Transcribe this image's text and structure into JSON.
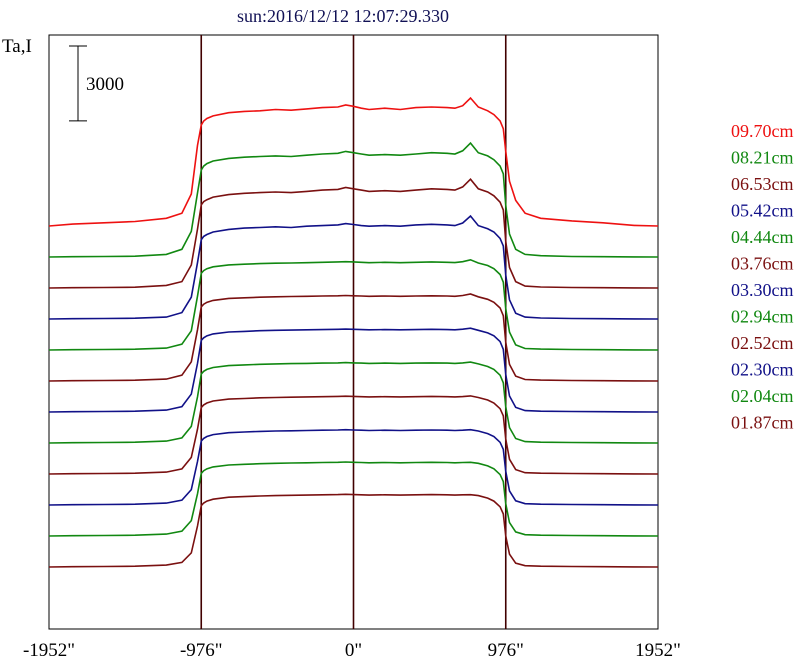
{
  "header": {
    "title": "sun:2016/12/12 12:07:29.330"
  },
  "colors": {
    "red": "#ee1111",
    "green": "#118811",
    "maroon": "#7a1010",
    "navy": "#111188",
    "axis": "#000000",
    "marker": "#400000"
  },
  "chart_data": {
    "type": "line",
    "title": "sun:2016/12/12 12:07:29.330",
    "ylabel": "Ta,I",
    "scale_bar_label": "3000",
    "scale_bar_value": 3000,
    "xlim": [
      -1952,
      1952
    ],
    "x_ticks": [
      {
        "value": -1952,
        "label": "-1952\""
      },
      {
        "value": -976,
        "label": "-976\""
      },
      {
        "value": 0,
        "label": "0\""
      },
      {
        "value": 976,
        "label": "976\""
      },
      {
        "value": 1952,
        "label": "1952\""
      }
    ],
    "limb_markers": [
      -976,
      0,
      976
    ],
    "x": [
      -1952,
      -1800,
      -1600,
      -1400,
      -1200,
      -1100,
      -1040,
      -1000,
      -976,
      -960,
      -940,
      -900,
      -800,
      -700,
      -600,
      -500,
      -400,
      -300,
      -200,
      -100,
      -50,
      0,
      50,
      100,
      200,
      300,
      400,
      500,
      600,
      650,
      700,
      750,
      800,
      860,
      900,
      940,
      960,
      976,
      1000,
      1040,
      1100,
      1200,
      1400,
      1600,
      1800,
      1952
    ],
    "series": [
      {
        "name": "09.70cm",
        "color": "red",
        "values": [
          0,
          150,
          250,
          350,
          600,
          1000,
          2500,
          6300,
          7900,
          8200,
          8400,
          8600,
          8850,
          8950,
          9000,
          9100,
          9050,
          9150,
          9250,
          9300,
          9450,
          9350,
          9200,
          9100,
          9200,
          9100,
          9250,
          9300,
          9250,
          9200,
          9400,
          10000,
          9300,
          9000,
          8700,
          8200,
          7600,
          5800,
          3500,
          2000,
          1000,
          600,
          400,
          250,
          50,
          0
        ]
      },
      {
        "name": "08.21cm",
        "color": "green",
        "values": [
          0,
          20,
          40,
          60,
          200,
          600,
          2000,
          5000,
          6800,
          7100,
          7300,
          7500,
          7700,
          7800,
          7850,
          7900,
          7850,
          7950,
          8050,
          8100,
          8250,
          8150,
          8050,
          7950,
          8000,
          7950,
          8050,
          8150,
          8100,
          8050,
          8300,
          8900,
          8150,
          7900,
          7600,
          7100,
          6500,
          4000,
          1800,
          600,
          200,
          100,
          40,
          20,
          10,
          0
        ]
      },
      {
        "name": "06.53cm",
        "color": "maroon",
        "values": [
          0,
          20,
          40,
          60,
          200,
          500,
          1800,
          4600,
          6500,
          6750,
          6900,
          7100,
          7300,
          7400,
          7450,
          7500,
          7450,
          7550,
          7650,
          7700,
          7850,
          7750,
          7650,
          7550,
          7600,
          7550,
          7650,
          7750,
          7700,
          7650,
          7900,
          8500,
          7750,
          7500,
          7200,
          6700,
          6100,
          3600,
          1600,
          500,
          150,
          80,
          40,
          20,
          10,
          0
        ]
      },
      {
        "name": "05.42cm",
        "color": "navy",
        "values": [
          0,
          20,
          40,
          60,
          150,
          500,
          1700,
          4400,
          6200,
          6450,
          6600,
          6800,
          7000,
          7100,
          7150,
          7200,
          7150,
          7250,
          7300,
          7350,
          7450,
          7380,
          7300,
          7250,
          7300,
          7250,
          7350,
          7400,
          7350,
          7300,
          7500,
          8050,
          7300,
          7050,
          6800,
          6300,
          5700,
          3400,
          1500,
          450,
          150,
          80,
          40,
          20,
          10,
          0
        ]
      },
      {
        "name": "04.44cm",
        "color": "green",
        "values": [
          0,
          20,
          40,
          60,
          150,
          450,
          1500,
          4200,
          6000,
          6200,
          6350,
          6500,
          6650,
          6700,
          6750,
          6780,
          6800,
          6820,
          6850,
          6880,
          6900,
          6880,
          6850,
          6820,
          6850,
          6820,
          6850,
          6880,
          6850,
          6830,
          6900,
          7050,
          6800,
          6600,
          6350,
          5900,
          5300,
          3200,
          1400,
          400,
          120,
          70,
          40,
          20,
          10,
          0
        ]
      },
      {
        "name": "03.76cm",
        "color": "maroon",
        "values": [
          0,
          20,
          40,
          60,
          150,
          450,
          1500,
          4000,
          5800,
          6000,
          6150,
          6300,
          6450,
          6500,
          6550,
          6580,
          6600,
          6620,
          6640,
          6660,
          6680,
          6660,
          6640,
          6620,
          6640,
          6620,
          6640,
          6660,
          6640,
          6620,
          6680,
          6800,
          6580,
          6380,
          6150,
          5700,
          5100,
          3000,
          1300,
          380,
          120,
          70,
          40,
          20,
          10,
          0
        ]
      },
      {
        "name": "03.30cm",
        "color": "navy",
        "values": [
          0,
          20,
          40,
          60,
          150,
          420,
          1400,
          3800,
          5600,
          5800,
          5950,
          6100,
          6250,
          6300,
          6350,
          6380,
          6400,
          6420,
          6440,
          6460,
          6480,
          6460,
          6440,
          6420,
          6440,
          6420,
          6440,
          6460,
          6440,
          6420,
          6470,
          6550,
          6380,
          6180,
          5950,
          5500,
          4900,
          2900,
          1250,
          360,
          110,
          60,
          40,
          20,
          10,
          0
        ]
      },
      {
        "name": "02.94cm",
        "color": "green",
        "values": [
          0,
          20,
          40,
          60,
          150,
          400,
          1300,
          3600,
          5400,
          5600,
          5750,
          5900,
          6050,
          6100,
          6150,
          6180,
          6200,
          6220,
          6240,
          6260,
          6280,
          6260,
          6240,
          6220,
          6240,
          6220,
          6240,
          6260,
          6240,
          6220,
          6260,
          6320,
          6180,
          5980,
          5750,
          5300,
          4700,
          2800,
          1200,
          350,
          110,
          60,
          40,
          20,
          10,
          0
        ]
      },
      {
        "name": "02.52cm",
        "color": "maroon",
        "values": [
          0,
          20,
          40,
          60,
          150,
          400,
          1300,
          3500,
          5200,
          5400,
          5550,
          5700,
          5850,
          5900,
          5950,
          5980,
          6000,
          6020,
          6040,
          6060,
          6080,
          6060,
          6040,
          6020,
          6040,
          6020,
          6040,
          6060,
          6040,
          6020,
          6050,
          6100,
          5980,
          5780,
          5550,
          5100,
          4550,
          2700,
          1150,
          340,
          100,
          60,
          40,
          20,
          10,
          0
        ]
      },
      {
        "name": "02.30cm",
        "color": "navy",
        "values": [
          0,
          20,
          40,
          60,
          150,
          380,
          1200,
          3400,
          5000,
          5200,
          5350,
          5500,
          5650,
          5700,
          5750,
          5780,
          5800,
          5820,
          5840,
          5860,
          5880,
          5860,
          5840,
          5820,
          5840,
          5820,
          5840,
          5860,
          5840,
          5820,
          5840,
          5880,
          5780,
          5580,
          5350,
          4900,
          4350,
          2600,
          1100,
          330,
          100,
          60,
          40,
          20,
          10,
          0
        ]
      },
      {
        "name": "02.04cm",
        "color": "green",
        "values": [
          0,
          20,
          40,
          60,
          150,
          380,
          1200,
          3300,
          4900,
          5100,
          5250,
          5400,
          5550,
          5600,
          5650,
          5680,
          5700,
          5720,
          5740,
          5760,
          5780,
          5760,
          5740,
          5720,
          5740,
          5720,
          5740,
          5760,
          5740,
          5720,
          5740,
          5760,
          5680,
          5480,
          5250,
          4800,
          4250,
          2500,
          1050,
          320,
          100,
          60,
          40,
          20,
          10,
          0
        ]
      },
      {
        "name": "01.87cm",
        "color": "maroon",
        "values": [
          0,
          20,
          40,
          60,
          150,
          360,
          1100,
          3200,
          4800,
          5000,
          5150,
          5300,
          5450,
          5500,
          5550,
          5580,
          5600,
          5620,
          5640,
          5660,
          5680,
          5660,
          5640,
          5620,
          5640,
          5620,
          5640,
          5660,
          5640,
          5620,
          5640,
          5650,
          5580,
          5380,
          5150,
          4700,
          4150,
          2400,
          1000,
          300,
          100,
          60,
          40,
          20,
          10,
          0
        ]
      }
    ]
  }
}
